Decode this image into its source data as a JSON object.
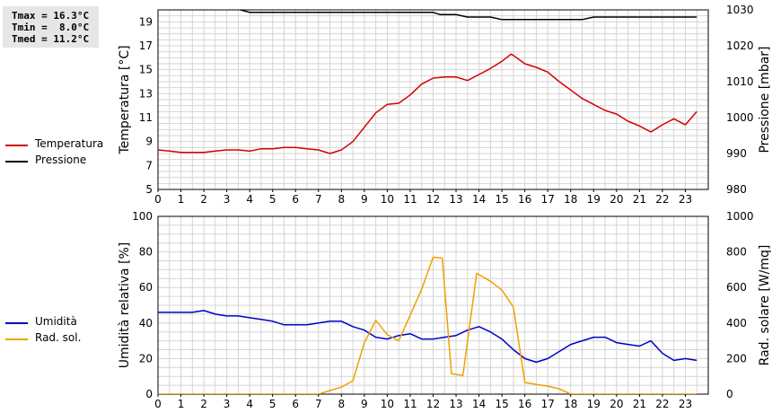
{
  "stats": {
    "tmax": "Tmax = 16.3°C",
    "tmin": "Tmin =  8.0°C",
    "tmed": "Tmed = 11.2°C"
  },
  "colors": {
    "temperature": "#d40000",
    "pressure": "#000000",
    "humidity": "#0000c8",
    "solar": "#f0a000",
    "grid": "#d4d4d4"
  },
  "chart_data": [
    {
      "type": "line",
      "x_ticks": [
        0,
        1,
        2,
        3,
        4,
        5,
        6,
        7,
        8,
        9,
        10,
        11,
        12,
        13,
        14,
        15,
        16,
        17,
        18,
        19,
        20,
        21,
        22,
        23
      ],
      "xlim": [
        0,
        24
      ],
      "ylabel": "Temperatura [°C]",
      "ylim": [
        5,
        20
      ],
      "y_ticks": [
        5,
        7,
        9,
        11,
        13,
        15,
        17,
        19
      ],
      "y2label": "Pressione [mbar]",
      "y2lim": [
        980,
        1030
      ],
      "y2_ticks": [
        980,
        990,
        1000,
        1010,
        1020,
        1030
      ],
      "legend": [
        "Temperatura",
        "Pressione"
      ],
      "series": [
        {
          "name": "Temperatura",
          "axis": "left",
          "color": "#d40000",
          "points": [
            [
              0,
              8.3
            ],
            [
              0.5,
              8.2
            ],
            [
              1,
              8.1
            ],
            [
              1.5,
              8.1
            ],
            [
              2,
              8.1
            ],
            [
              2.5,
              8.2
            ],
            [
              3,
              8.3
            ],
            [
              3.5,
              8.3
            ],
            [
              4,
              8.2
            ],
            [
              4.5,
              8.4
            ],
            [
              5,
              8.4
            ],
            [
              5.5,
              8.5
            ],
            [
              6,
              8.5
            ],
            [
              6.5,
              8.4
            ],
            [
              7,
              8.3
            ],
            [
              7.5,
              8.0
            ],
            [
              8,
              8.3
            ],
            [
              8.5,
              9.0
            ],
            [
              9,
              10.2
            ],
            [
              9.5,
              11.4
            ],
            [
              10,
              12.1
            ],
            [
              10.5,
              12.2
            ],
            [
              11,
              12.9
            ],
            [
              11.5,
              13.8
            ],
            [
              12,
              14.3
            ],
            [
              12.5,
              14.4
            ],
            [
              13,
              14.4
            ],
            [
              13.5,
              14.1
            ],
            [
              14,
              14.6
            ],
            [
              14.5,
              15.1
            ],
            [
              15,
              15.7
            ],
            [
              15.4,
              16.3
            ],
            [
              15.5,
              16.2
            ],
            [
              16,
              15.5
            ],
            [
              16.5,
              15.2
            ],
            [
              17,
              14.8
            ],
            [
              17.5,
              14.0
            ],
            [
              18,
              13.3
            ],
            [
              18.5,
              12.6
            ],
            [
              19,
              12.1
            ],
            [
              19.5,
              11.6
            ],
            [
              20,
              11.3
            ],
            [
              20.5,
              10.7
            ],
            [
              21,
              10.3
            ],
            [
              21.5,
              9.8
            ],
            [
              22,
              10.4
            ],
            [
              22.5,
              10.9
            ],
            [
              23,
              10.4
            ],
            [
              23.5,
              11.5
            ]
          ]
        },
        {
          "name": "Pressione",
          "axis": "right",
          "color": "#000000",
          "points": [
            [
              3.6,
              1030
            ],
            [
              4,
              1029.3
            ],
            [
              12,
              1029.3
            ],
            [
              12.3,
              1028.7
            ],
            [
              13,
              1028.7
            ],
            [
              13.5,
              1028.0
            ],
            [
              14.5,
              1028.0
            ],
            [
              15,
              1027.3
            ],
            [
              18.5,
              1027.3
            ],
            [
              19,
              1028.0
            ],
            [
              23.5,
              1028.0
            ]
          ]
        }
      ]
    },
    {
      "type": "line",
      "x_ticks": [
        0,
        1,
        2,
        3,
        4,
        5,
        6,
        7,
        8,
        9,
        10,
        11,
        12,
        13,
        14,
        15,
        16,
        17,
        18,
        19,
        20,
        21,
        22,
        23
      ],
      "xlim": [
        0,
        24
      ],
      "ylabel": "Umidità relativa [%]",
      "ylim": [
        0,
        100
      ],
      "y_ticks": [
        0,
        20,
        40,
        60,
        80,
        100
      ],
      "y2label": "Rad. solare [W/mq]",
      "y2lim": [
        0,
        1000
      ],
      "y2_ticks": [
        0,
        200,
        400,
        600,
        800,
        1000
      ],
      "legend": [
        "Umidità",
        "Rad. sol."
      ],
      "series": [
        {
          "name": "Umidità",
          "axis": "left",
          "color": "#0000c8",
          "points": [
            [
              0,
              46
            ],
            [
              0.5,
              46
            ],
            [
              1,
              46
            ],
            [
              1.5,
              46
            ],
            [
              2,
              47
            ],
            [
              2.5,
              45
            ],
            [
              3,
              44
            ],
            [
              3.5,
              44
            ],
            [
              4,
              43
            ],
            [
              4.5,
              42
            ],
            [
              5,
              41
            ],
            [
              5.5,
              39
            ],
            [
              6,
              39
            ],
            [
              6.5,
              39
            ],
            [
              7,
              40
            ],
            [
              7.5,
              41
            ],
            [
              8,
              41
            ],
            [
              8.5,
              38
            ],
            [
              9,
              36
            ],
            [
              9.5,
              32
            ],
            [
              10,
              31
            ],
            [
              10.5,
              33
            ],
            [
              11,
              34
            ],
            [
              11.5,
              31
            ],
            [
              12,
              31
            ],
            [
              12.5,
              32
            ],
            [
              13,
              33
            ],
            [
              13.5,
              36
            ],
            [
              14,
              38
            ],
            [
              14.5,
              35
            ],
            [
              15,
              31
            ],
            [
              15.5,
              25
            ],
            [
              16,
              20
            ],
            [
              16.5,
              18
            ],
            [
              17,
              20
            ],
            [
              17.5,
              24
            ],
            [
              18,
              28
            ],
            [
              18.5,
              30
            ],
            [
              19,
              32
            ],
            [
              19.5,
              32
            ],
            [
              20,
              29
            ],
            [
              20.5,
              28
            ],
            [
              21,
              27
            ],
            [
              21.5,
              30
            ],
            [
              22,
              23
            ],
            [
              22.5,
              19
            ],
            [
              23,
              20
            ],
            [
              23.5,
              19
            ]
          ]
        },
        {
          "name": "Rad. sol.",
          "axis": "right",
          "color": "#f0a000",
          "points": [
            [
              0,
              0
            ],
            [
              7,
              0
            ],
            [
              7.5,
              20
            ],
            [
              8,
              40
            ],
            [
              8.5,
              75
            ],
            [
              9,
              290
            ],
            [
              9.5,
              415
            ],
            [
              10,
              335
            ],
            [
              10.5,
              300
            ],
            [
              11,
              445
            ],
            [
              11.5,
              590
            ],
            [
              12,
              770
            ],
            [
              12.4,
              765
            ],
            [
              12.8,
              115
            ],
            [
              13.3,
              105
            ],
            [
              13.9,
              680
            ],
            [
              14.5,
              635
            ],
            [
              15,
              585
            ],
            [
              15.5,
              490
            ],
            [
              16,
              65
            ],
            [
              16.5,
              55
            ],
            [
              17,
              45
            ],
            [
              17.5,
              30
            ],
            [
              18,
              0
            ],
            [
              23.5,
              0
            ]
          ]
        }
      ]
    }
  ]
}
